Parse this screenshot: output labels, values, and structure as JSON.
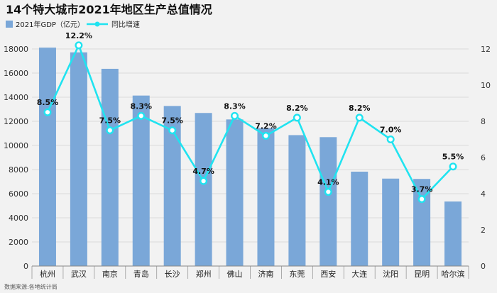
{
  "chart_data": {
    "type": "bar",
    "title": "14个特大城市2021年地区生产总值情况",
    "source": "数据来源:各地统计局",
    "categories": [
      "杭州",
      "武汉",
      "南京",
      "青岛",
      "长沙",
      "郑州",
      "佛山",
      "济南",
      "东莞",
      "西安",
      "大连",
      "沈阳",
      "昆明",
      "哈尔滨"
    ],
    "series": [
      {
        "name": "2021年GDP（亿元）",
        "type": "bar",
        "axis": "left",
        "color": "#7aa7d8",
        "values": [
          18109,
          17717,
          16355,
          14136,
          13271,
          12691,
          12157,
          11432,
          10855,
          10688,
          7826,
          7250,
          7223,
          5352
        ]
      },
      {
        "name": "同比增速",
        "type": "line",
        "axis": "right",
        "color": "#20e3f0",
        "values": [
          8.5,
          12.2,
          7.5,
          8.3,
          7.5,
          4.7,
          8.3,
          7.2,
          8.2,
          4.1,
          8.2,
          7.0,
          3.7,
          5.5
        ],
        "labels": [
          "8.5%",
          "12.2%",
          "7.5%",
          "8.3%",
          "7.5%",
          "4.7%",
          "8.3%",
          "7.2%",
          "8.2%",
          "4.1%",
          "8.2%",
          "7.0%",
          "3.7%",
          "5.5%"
        ]
      }
    ],
    "y_left": {
      "min": 0,
      "max": 19000,
      "ticks": [
        0,
        2000,
        4000,
        6000,
        8000,
        10000,
        12000,
        14000,
        16000,
        18000
      ],
      "tick_labels": [
        "0",
        "2000",
        "4000",
        "6000",
        "8000",
        "10000",
        "12000",
        "14000",
        "16000",
        "18000"
      ]
    },
    "y_right": {
      "min": 0,
      "max": 12.666,
      "ticks": [
        0,
        2,
        4,
        6,
        8,
        10,
        12
      ],
      "tick_labels": [
        "0",
        "2",
        "4",
        "6",
        "8",
        "10",
        "12"
      ]
    },
    "grid": true,
    "legend_position": "top-left"
  }
}
